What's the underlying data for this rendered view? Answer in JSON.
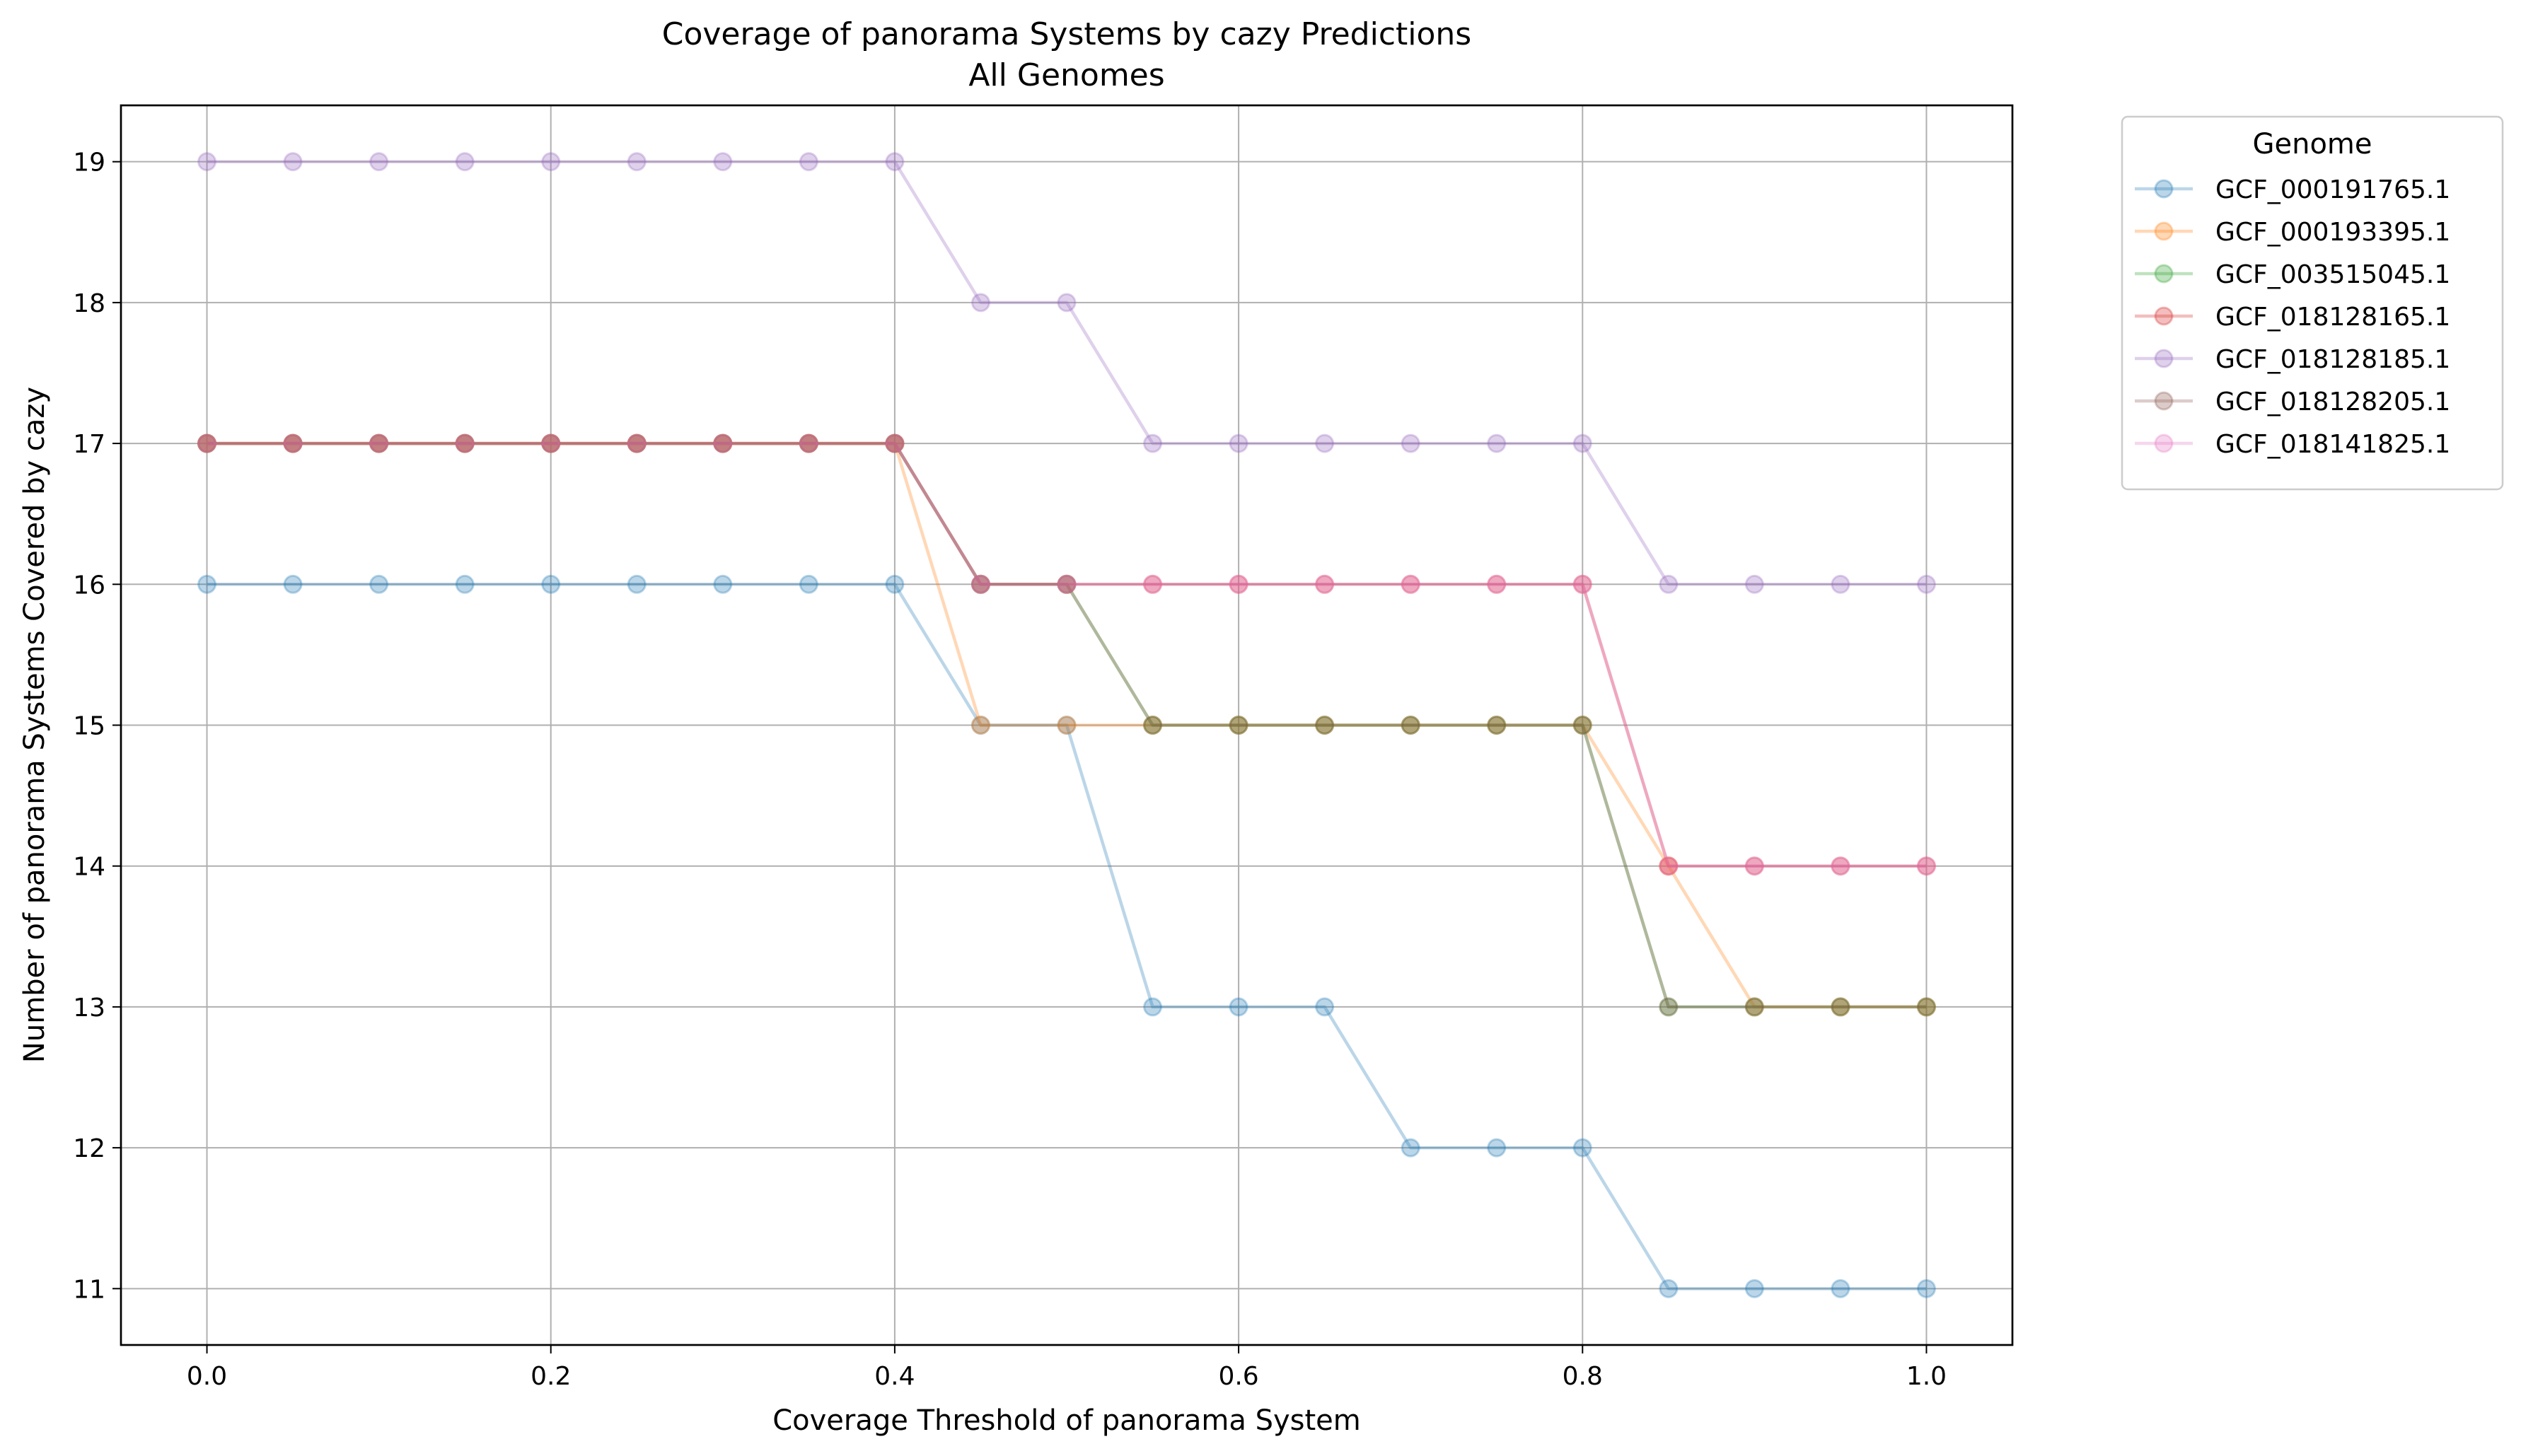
{
  "chart_data": {
    "type": "line",
    "title": "Coverage of panorama Systems by cazy Predictions",
    "subtitle": "All Genomes",
    "xlabel": "Coverage Threshold of panorama System",
    "ylabel": "Number of panorama Systems Covered by cazy",
    "xlim": [
      -0.05,
      1.05
    ],
    "ylim": [
      10.6,
      19.4
    ],
    "x_ticks": [
      0.0,
      0.2,
      0.4,
      0.6,
      0.8,
      1.0
    ],
    "x_tick_labels": [
      "0.0",
      "0.2",
      "0.4",
      "0.6",
      "0.8",
      "1.0"
    ],
    "y_ticks": [
      11,
      12,
      13,
      14,
      15,
      16,
      17,
      18,
      19
    ],
    "y_tick_labels": [
      "11",
      "12",
      "13",
      "14",
      "15",
      "16",
      "17",
      "18",
      "19"
    ],
    "grid": true,
    "legend_title": "Genome",
    "legend_position": "outside-top-right",
    "x": [
      0.0,
      0.05,
      0.1,
      0.15,
      0.2,
      0.25,
      0.3,
      0.35,
      0.4,
      0.45,
      0.5,
      0.55,
      0.6,
      0.65,
      0.7,
      0.75,
      0.8,
      0.85,
      0.9,
      0.95,
      1.0
    ],
    "series": [
      {
        "name": "GCF_000191765.1",
        "color": "#1f77b4",
        "values": [
          16,
          16,
          16,
          16,
          16,
          16,
          16,
          16,
          16,
          15,
          15,
          13,
          13,
          13,
          12,
          12,
          12,
          11,
          11,
          11,
          11
        ]
      },
      {
        "name": "GCF_000193395.1",
        "color": "#ff7f0e",
        "values": [
          17,
          17,
          17,
          17,
          17,
          17,
          17,
          17,
          17,
          15,
          15,
          15,
          15,
          15,
          15,
          15,
          15,
          14,
          13,
          13,
          13
        ]
      },
      {
        "name": "GCF_003515045.1",
        "color": "#2ca02c",
        "values": [
          17,
          17,
          17,
          17,
          17,
          17,
          17,
          17,
          17,
          16,
          16,
          15,
          15,
          15,
          15,
          15,
          15,
          13,
          13,
          13,
          13
        ]
      },
      {
        "name": "GCF_018128165.1",
        "color": "#d62728",
        "values": [
          17,
          17,
          17,
          17,
          17,
          17,
          17,
          17,
          17,
          16,
          16,
          16,
          16,
          16,
          16,
          16,
          16,
          14,
          14,
          14,
          14
        ]
      },
      {
        "name": "GCF_018128185.1",
        "color": "#9467bd",
        "values": [
          19,
          19,
          19,
          19,
          19,
          19,
          19,
          19,
          19,
          18,
          18,
          17,
          17,
          17,
          17,
          17,
          17,
          16,
          16,
          16,
          16
        ]
      },
      {
        "name": "GCF_018128205.1",
        "color": "#8c564b",
        "values": [
          17,
          17,
          17,
          17,
          17,
          17,
          17,
          17,
          17,
          16,
          16,
          15,
          15,
          15,
          15,
          15,
          15,
          13,
          13,
          13,
          13
        ]
      },
      {
        "name": "GCF_018141825.1",
        "color": "#e377c2",
        "values": [
          17,
          17,
          17,
          17,
          17,
          17,
          17,
          17,
          17,
          16,
          16,
          16,
          16,
          16,
          16,
          16,
          16,
          14,
          14,
          14,
          14
        ]
      }
    ]
  }
}
